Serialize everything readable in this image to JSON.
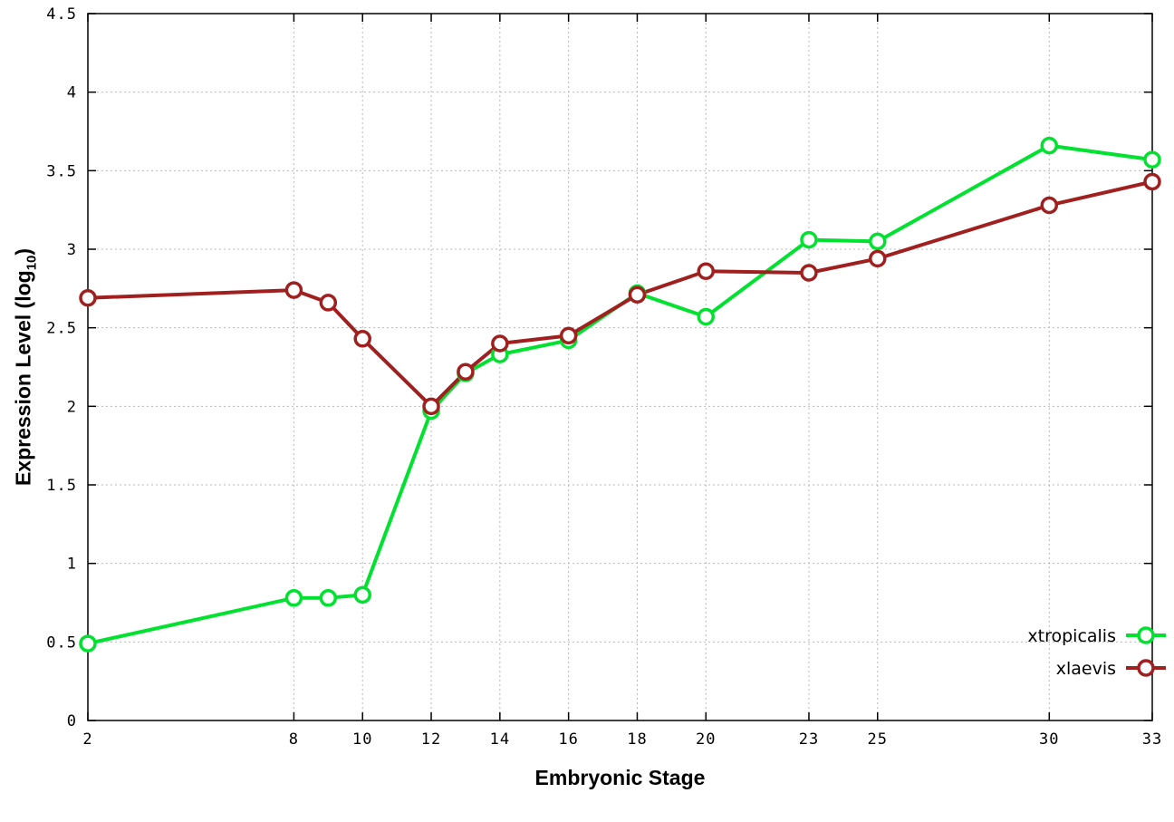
{
  "chart_data": {
    "type": "line",
    "title": "",
    "xlabel": "Embryonic Stage",
    "ylabel": {
      "pre": "Expression Level (log",
      "sub": "10",
      "post": ")"
    },
    "xlim": [
      2,
      33
    ],
    "ylim": [
      0,
      4.5
    ],
    "grid": true,
    "legend_position": "bottom-right",
    "x_ticks": [
      2,
      8,
      10,
      12,
      14,
      16,
      18,
      20,
      23,
      25,
      30,
      33
    ],
    "x_tick_labels": [
      "2",
      "8",
      "10",
      "12",
      "14",
      "16",
      "18",
      "20",
      "23",
      "25",
      "30",
      "33"
    ],
    "y_ticks": [
      0,
      0.5,
      1,
      1.5,
      2,
      2.5,
      3,
      3.5,
      4,
      4.5
    ],
    "y_tick_labels": [
      "0",
      "0.5",
      "1",
      "1.5",
      "2",
      "2.5",
      "3",
      "3.5",
      "4",
      "4.5"
    ],
    "x": [
      2,
      8,
      9,
      10,
      12,
      13,
      14,
      16,
      18,
      20,
      23,
      25,
      30,
      33
    ],
    "series": [
      {
        "name": "xtropicalis",
        "color": "#00e130",
        "values": [
          0.49,
          0.78,
          0.78,
          0.8,
          1.97,
          2.21,
          2.33,
          2.42,
          2.72,
          2.57,
          3.06,
          3.05,
          3.66,
          3.57
        ]
      },
      {
        "name": "xlaevis",
        "color": "#a02020",
        "values": [
          2.69,
          2.74,
          2.66,
          2.43,
          2.0,
          2.22,
          2.4,
          2.45,
          2.71,
          2.86,
          2.85,
          2.94,
          3.28,
          3.43
        ]
      }
    ]
  }
}
